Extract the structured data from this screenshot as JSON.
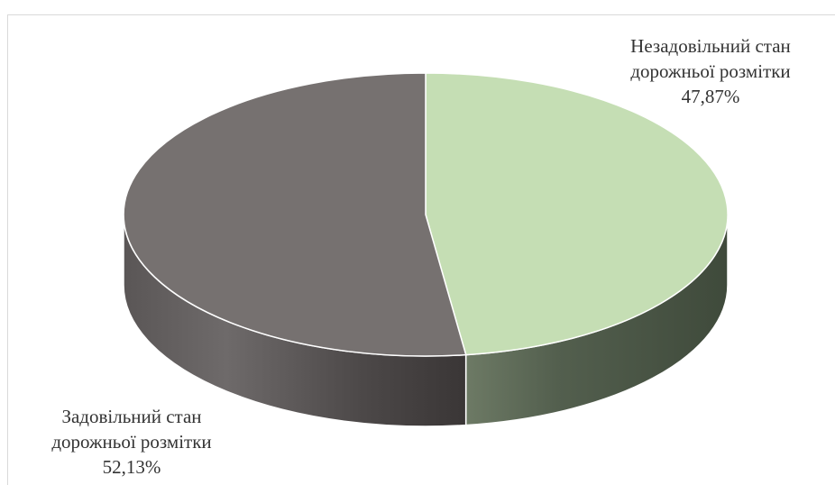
{
  "chart_data": {
    "type": "pie",
    "style": "3d",
    "title": "",
    "slices": [
      {
        "label_line1": "Незадовільний стан",
        "label_line2": "дорожньої розмітки",
        "value_label": "47,87%",
        "value": 47.87,
        "color": "#c5deb4",
        "side_color": "#4b5846"
      },
      {
        "label_line1": "Задовільний стан",
        "label_line2": "дорожньої розмітки",
        "value_label": "52,13%",
        "value": 52.13,
        "color": "#767170",
        "side_color": "#3f3c3c"
      }
    ],
    "legend": "none"
  }
}
